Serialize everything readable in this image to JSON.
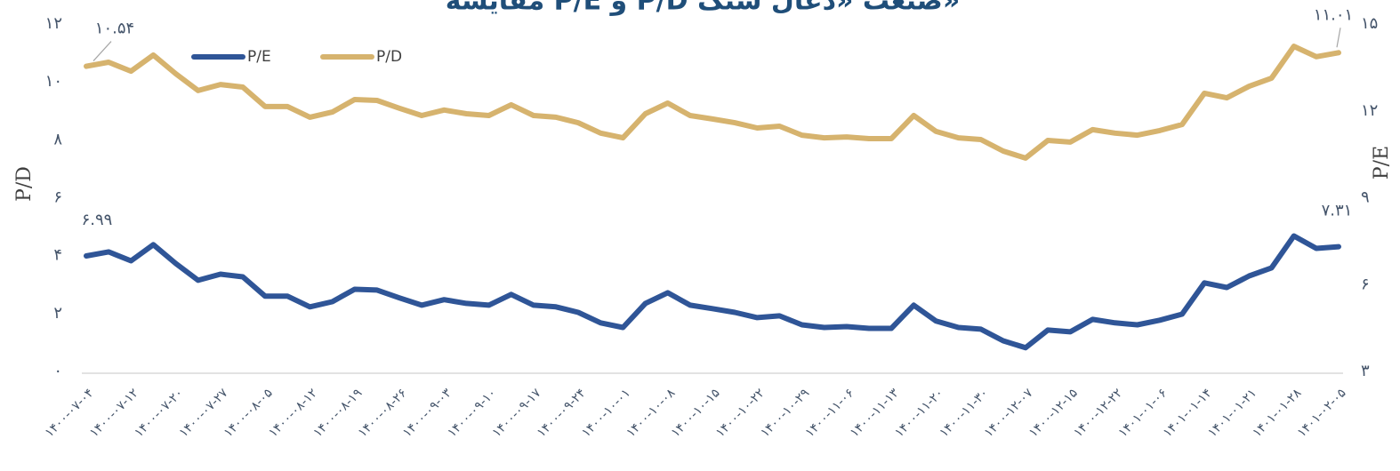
{
  "chart_data": {
    "type": "line",
    "title": "مقایسه P/E و P/D صنعت «ذغال سنگ»",
    "y_label": "P/D",
    "y2_label": "P/E",
    "legend": "top-left",
    "categories": [
      "۱۴۰۰-۰۷-۰۴",
      null,
      "۱۴۰۰-۰۷-۱۲",
      null,
      "۱۴۰۰-۰۷-۲۰",
      null,
      "۱۴۰۰-۰۷-۲۷",
      null,
      "۱۴۰۰-۰۸-۰۵",
      null,
      "۱۴۰۰-۰۸-۱۲",
      null,
      "۱۴۰۰-۰۸-۱۹",
      null,
      "۱۴۰۰-۰۸-۲۶",
      null,
      "۱۴۰۰-۰۹-۰۳",
      null,
      "۱۴۰۰-۰۹-۱۰",
      null,
      "۱۴۰۰-۰۹-۱۷",
      null,
      "۱۴۰۰-۰۹-۲۴",
      null,
      "۱۴۰۰-۱۰-۰۱",
      null,
      "۱۴۰۰-۱۰-۰۸",
      null,
      "۱۴۰۰-۱۰-۱۵",
      null,
      "۱۴۰۰-۱۰-۲۲",
      null,
      "۱۴۰۰-۱۰-۲۹",
      null,
      "۱۴۰۰-۱۱-۰۶",
      null,
      "۱۴۰۰-۱۱-۱۳",
      null,
      "۱۴۰۰-۱۱-۲۰",
      null,
      "۱۴۰۰-۱۱-۳۰",
      null,
      "۱۴۰۰-۱۲-۰۷",
      null,
      "۱۴۰۰-۱۲-۱۵",
      null,
      "۱۴۰۰-۱۲-۲۲",
      null,
      "۱۴۰۱-۰۱-۰۶",
      null,
      "۱۴۰۱-۰۱-۱۴",
      null,
      "۱۴۰۱-۰۱-۲۱",
      null,
      "۱۴۰۱-۰۱-۲۸",
      null,
      "۱۴۰۱-۰۲-۰۵"
    ],
    "series": [
      {
        "name": "P/E",
        "color": "#2f5597",
        "axis": "y2",
        "values": [
          6.99,
          7.13,
          6.82,
          7.38,
          6.73,
          6.15,
          6.36,
          6.27,
          5.6,
          5.6,
          5.23,
          5.41,
          5.84,
          5.81,
          5.54,
          5.29,
          5.48,
          5.35,
          5.29,
          5.66,
          5.29,
          5.23,
          5.04,
          4.68,
          4.52,
          5.35,
          5.72,
          5.29,
          5.17,
          5.04,
          4.86,
          4.92,
          4.61,
          4.52,
          4.55,
          4.49,
          4.49,
          5.29,
          4.74,
          4.52,
          4.46,
          4.06,
          3.82,
          4.43,
          4.37,
          4.8,
          4.68,
          4.61,
          4.77,
          4.98,
          6.06,
          5.9,
          6.3,
          6.58,
          7.68,
          7.25,
          7.31
        ],
        "value_labels": [
          "۶.۹۹",
          null,
          null,
          null,
          null,
          null,
          null,
          null,
          null,
          null,
          null,
          null,
          null,
          null,
          null,
          null,
          null,
          null,
          null,
          null,
          null,
          null,
          null,
          null,
          null,
          null,
          null,
          null,
          null,
          null,
          null,
          null,
          null,
          null,
          null,
          null,
          null,
          null,
          null,
          null,
          null,
          null,
          null,
          null,
          null,
          null,
          null,
          null,
          null,
          null,
          null,
          null,
          null,
          null,
          null,
          null,
          "۷.۳۱"
        ]
      },
      {
        "name": "P/D",
        "color": "#d6b36e",
        "values": [
          10.54,
          10.68,
          10.37,
          10.93,
          10.28,
          9.7,
          9.91,
          9.82,
          9.15,
          9.15,
          8.78,
          8.96,
          9.39,
          9.36,
          9.09,
          8.84,
          9.03,
          8.9,
          8.84,
          9.21,
          8.84,
          8.78,
          8.59,
          8.23,
          8.07,
          8.9,
          9.27,
          8.84,
          8.72,
          8.59,
          8.41,
          8.47,
          8.16,
          8.07,
          8.1,
          8.04,
          8.04,
          8.84,
          8.29,
          8.07,
          8.01,
          7.61,
          7.37,
          7.98,
          7.92,
          8.35,
          8.23,
          8.16,
          8.32,
          8.53,
          9.61,
          9.45,
          9.85,
          10.13,
          11.23,
          10.87,
          11.01
        ],
        "value_labels": [
          "۱۰.۵۴",
          null,
          null,
          null,
          null,
          null,
          null,
          null,
          null,
          null,
          null,
          null,
          null,
          null,
          null,
          null,
          null,
          null,
          null,
          null,
          null,
          null,
          null,
          null,
          null,
          null,
          null,
          null,
          null,
          null,
          null,
          null,
          null,
          null,
          null,
          null,
          null,
          null,
          null,
          null,
          null,
          null,
          null,
          null,
          null,
          null,
          null,
          null,
          null,
          null,
          null,
          null,
          null,
          null,
          null,
          null,
          "۱۱.۰۱"
        ]
      }
    ],
    "ylim": [
      0,
      12
    ],
    "yticks": [
      {
        "value": 0,
        "label": "۰"
      },
      {
        "value": 2,
        "label": "۲"
      },
      {
        "value": 4,
        "label": "۴"
      },
      {
        "value": 6,
        "label": "۶"
      },
      {
        "value": 8,
        "label": "۸"
      },
      {
        "value": 10,
        "label": "۱۰"
      },
      {
        "value": 12,
        "label": "۱۲"
      }
    ],
    "y2lim": [
      3,
      15
    ],
    "y2ticks": [
      {
        "value": 3,
        "label": "۳"
      },
      {
        "value": 6,
        "label": "۶"
      },
      {
        "value": 9,
        "label": "۹"
      },
      {
        "value": 12,
        "label": "۱۲"
      },
      {
        "value": 15,
        "label": "۱۵"
      }
    ],
    "grid": false
  }
}
